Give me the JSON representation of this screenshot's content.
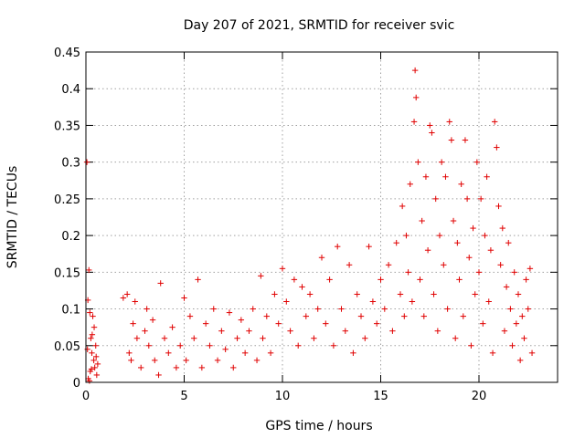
{
  "chart_data": {
    "type": "scatter",
    "title": "Day 207 of 2021, SRMTID for receiver svic",
    "xlabel": "GPS time / hours",
    "ylabel": "SRMTID / TECUs",
    "xlim": [
      0,
      24
    ],
    "ylim": [
      0,
      0.45
    ],
    "xticks": [
      0,
      5,
      10,
      15,
      20
    ],
    "xtick_labels": [
      "0",
      "5",
      "10",
      "15",
      "20"
    ],
    "yticks": [
      0,
      0.05,
      0.1,
      0.15,
      0.2,
      0.25,
      0.3,
      0.35,
      0.4,
      0.45
    ],
    "ytick_labels": [
      "0",
      "0.05",
      "0.1",
      "0.15",
      "0.2",
      "0.25",
      "0.3",
      "0.35",
      "0.4",
      "0.45"
    ],
    "grid": true,
    "marker": "+",
    "color": "#e00000",
    "series": [
      {
        "name": "SRMTID",
        "points": [
          [
            0.05,
            0.3
          ],
          [
            0.1,
            0.112
          ],
          [
            0.15,
            0.153
          ],
          [
            0.2,
            0.095
          ],
          [
            0.25,
            0.06
          ],
          [
            0.3,
            0.04
          ],
          [
            0.35,
            0.09
          ],
          [
            0.4,
            0.03
          ],
          [
            0.45,
            0.02
          ],
          [
            0.5,
            0.05
          ],
          [
            0.55,
            0.01
          ],
          [
            0.6,
            0.025
          ],
          [
            0.12,
            0.005
          ],
          [
            0.22,
            0.015
          ],
          [
            0.32,
            0.065
          ],
          [
            0.42,
            0.075
          ],
          [
            0.52,
            0.035
          ],
          [
            0.08,
            0.045
          ],
          [
            0.18,
            0.002
          ],
          [
            0.28,
            0.018
          ],
          [
            1.9,
            0.115
          ],
          [
            2.1,
            0.12
          ],
          [
            2.2,
            0.04
          ],
          [
            2.3,
            0.03
          ],
          [
            2.4,
            0.08
          ],
          [
            2.5,
            0.11
          ],
          [
            2.6,
            0.06
          ],
          [
            2.8,
            0.02
          ],
          [
            3.0,
            0.07
          ],
          [
            3.1,
            0.1
          ],
          [
            3.2,
            0.05
          ],
          [
            3.4,
            0.085
          ],
          [
            3.5,
            0.03
          ],
          [
            3.7,
            0.01
          ],
          [
            3.8,
            0.135
          ],
          [
            4.0,
            0.06
          ],
          [
            4.2,
            0.04
          ],
          [
            4.4,
            0.075
          ],
          [
            4.6,
            0.02
          ],
          [
            4.8,
            0.05
          ],
          [
            5.0,
            0.115
          ],
          [
            5.1,
            0.03
          ],
          [
            5.3,
            0.09
          ],
          [
            5.5,
            0.06
          ],
          [
            5.7,
            0.14
          ],
          [
            5.9,
            0.02
          ],
          [
            6.1,
            0.08
          ],
          [
            6.3,
            0.05
          ],
          [
            6.5,
            0.1
          ],
          [
            6.7,
            0.03
          ],
          [
            6.9,
            0.07
          ],
          [
            7.1,
            0.045
          ],
          [
            7.3,
            0.095
          ],
          [
            7.5,
            0.02
          ],
          [
            7.7,
            0.06
          ],
          [
            7.9,
            0.085
          ],
          [
            8.1,
            0.04
          ],
          [
            8.3,
            0.07
          ],
          [
            8.5,
            0.1
          ],
          [
            8.7,
            0.03
          ],
          [
            8.9,
            0.145
          ],
          [
            9.0,
            0.06
          ],
          [
            9.2,
            0.09
          ],
          [
            9.4,
            0.04
          ],
          [
            9.6,
            0.12
          ],
          [
            9.8,
            0.08
          ],
          [
            10.0,
            0.155
          ],
          [
            10.2,
            0.11
          ],
          [
            10.4,
            0.07
          ],
          [
            10.6,
            0.14
          ],
          [
            10.8,
            0.05
          ],
          [
            11.0,
            0.13
          ],
          [
            11.2,
            0.09
          ],
          [
            11.4,
            0.12
          ],
          [
            11.6,
            0.06
          ],
          [
            11.8,
            0.1
          ],
          [
            12.0,
            0.17
          ],
          [
            12.2,
            0.08
          ],
          [
            12.4,
            0.14
          ],
          [
            12.6,
            0.05
          ],
          [
            12.8,
            0.185
          ],
          [
            13.0,
            0.1
          ],
          [
            13.2,
            0.07
          ],
          [
            13.4,
            0.16
          ],
          [
            13.6,
            0.04
          ],
          [
            13.8,
            0.12
          ],
          [
            14.0,
            0.09
          ],
          [
            14.2,
            0.06
          ],
          [
            14.4,
            0.185
          ],
          [
            14.6,
            0.11
          ],
          [
            14.8,
            0.08
          ],
          [
            15.0,
            0.14
          ],
          [
            15.2,
            0.1
          ],
          [
            15.4,
            0.16
          ],
          [
            15.6,
            0.07
          ],
          [
            15.8,
            0.19
          ],
          [
            16.0,
            0.12
          ],
          [
            16.1,
            0.24
          ],
          [
            16.2,
            0.09
          ],
          [
            16.3,
            0.2
          ],
          [
            16.4,
            0.15
          ],
          [
            16.5,
            0.27
          ],
          [
            16.6,
            0.11
          ],
          [
            16.7,
            0.355
          ],
          [
            16.75,
            0.425
          ],
          [
            16.8,
            0.388
          ],
          [
            16.9,
            0.3
          ],
          [
            17.0,
            0.14
          ],
          [
            17.1,
            0.22
          ],
          [
            17.2,
            0.09
          ],
          [
            17.3,
            0.28
          ],
          [
            17.4,
            0.18
          ],
          [
            17.5,
            0.35
          ],
          [
            17.6,
            0.34
          ],
          [
            17.7,
            0.12
          ],
          [
            17.8,
            0.25
          ],
          [
            17.9,
            0.07
          ],
          [
            18.0,
            0.2
          ],
          [
            18.1,
            0.3
          ],
          [
            18.2,
            0.16
          ],
          [
            18.3,
            0.28
          ],
          [
            18.4,
            0.1
          ],
          [
            18.5,
            0.355
          ],
          [
            18.6,
            0.33
          ],
          [
            18.7,
            0.22
          ],
          [
            18.8,
            0.06
          ],
          [
            18.9,
            0.19
          ],
          [
            19.0,
            0.14
          ],
          [
            19.1,
            0.27
          ],
          [
            19.2,
            0.09
          ],
          [
            19.3,
            0.33
          ],
          [
            19.4,
            0.25
          ],
          [
            19.5,
            0.17
          ],
          [
            19.6,
            0.05
          ],
          [
            19.7,
            0.21
          ],
          [
            19.8,
            0.12
          ],
          [
            19.9,
            0.3
          ],
          [
            20.0,
            0.15
          ],
          [
            20.1,
            0.25
          ],
          [
            20.2,
            0.08
          ],
          [
            20.3,
            0.2
          ],
          [
            20.4,
            0.28
          ],
          [
            20.5,
            0.11
          ],
          [
            20.6,
            0.18
          ],
          [
            20.7,
            0.04
          ],
          [
            20.8,
            0.355
          ],
          [
            20.9,
            0.32
          ],
          [
            21.0,
            0.24
          ],
          [
            21.1,
            0.16
          ],
          [
            21.2,
            0.21
          ],
          [
            21.3,
            0.07
          ],
          [
            21.4,
            0.13
          ],
          [
            21.5,
            0.19
          ],
          [
            21.6,
            0.1
          ],
          [
            21.7,
            0.05
          ],
          [
            21.8,
            0.15
          ],
          [
            21.9,
            0.08
          ],
          [
            22.0,
            0.12
          ],
          [
            22.1,
            0.03
          ],
          [
            22.2,
            0.09
          ],
          [
            22.3,
            0.06
          ],
          [
            22.4,
            0.14
          ],
          [
            22.5,
            0.1
          ],
          [
            22.6,
            0.155
          ],
          [
            22.7,
            0.04
          ]
        ]
      }
    ]
  }
}
